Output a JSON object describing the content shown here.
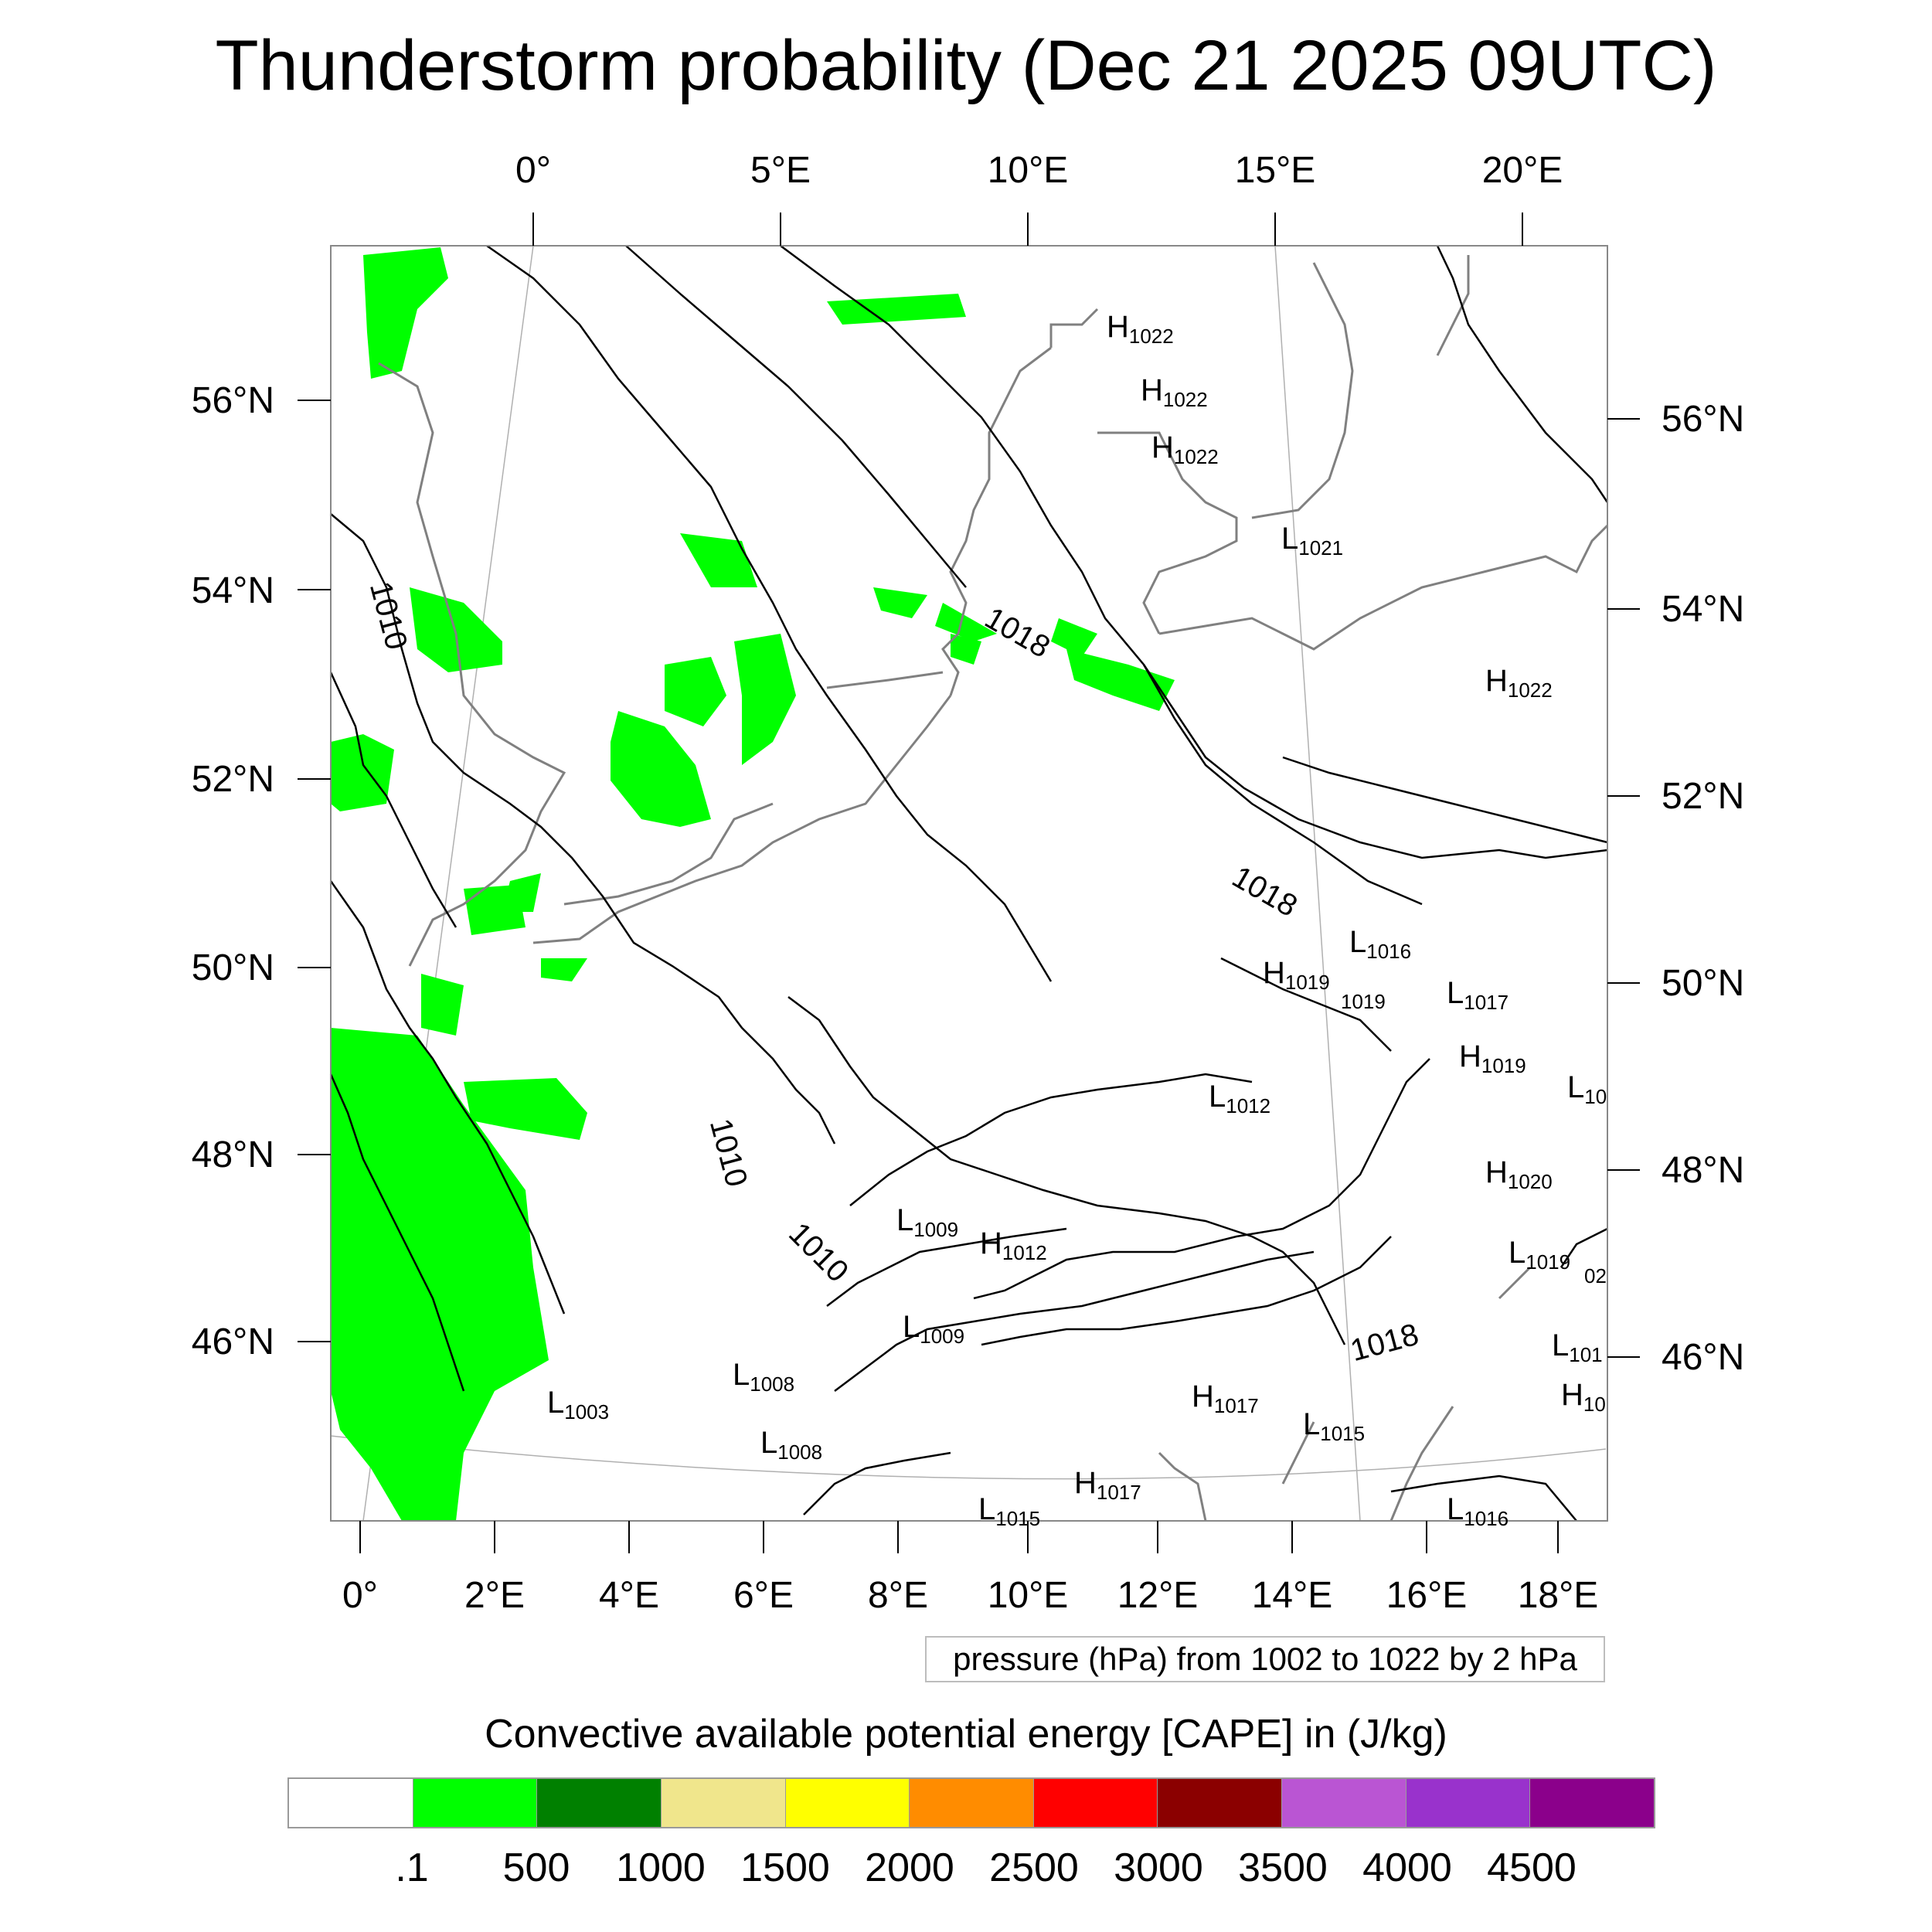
{
  "title": "Thunderstorm probability (Dec 21 2025 09UTC)",
  "colors": {
    "cape_fill": "#00ff00",
    "isobar": "#000000",
    "coastline": "#808080",
    "frame": "#888888",
    "graticule": "#b0b0b0"
  },
  "map": {
    "top_longitude_labels": [
      "0°",
      "5°E",
      "10°E",
      "15°E",
      "20°E"
    ],
    "bottom_longitude_labels": [
      "0°",
      "2°E",
      "4°E",
      "6°E",
      "8°E",
      "10°E",
      "12°E",
      "14°E",
      "16°E",
      "18°E"
    ],
    "left_latitude_labels": [
      "56°N",
      "54°N",
      "52°N",
      "50°N",
      "48°N",
      "46°N"
    ],
    "right_latitude_labels": [
      "56°N",
      "54°N",
      "52°N",
      "50°N",
      "48°N",
      "46°N"
    ],
    "isobar_labels": [
      "1010",
      "1018",
      "1018",
      "1010",
      "1010",
      "1018"
    ],
    "pressure_centers": [
      {
        "type": "H",
        "value": "1022"
      },
      {
        "type": "H",
        "value": "1022"
      },
      {
        "type": "H",
        "value": "1022"
      },
      {
        "type": "L",
        "value": "1021"
      },
      {
        "type": "H",
        "value": "1022"
      },
      {
        "type": "L",
        "value": "1016"
      },
      {
        "type": "H",
        "value": "1019"
      },
      {
        "type": "L",
        "value": "1017"
      },
      {
        "type": "",
        "value": "1019"
      },
      {
        "type": "H",
        "value": "1019"
      },
      {
        "type": "L",
        "value": "10"
      },
      {
        "type": "L",
        "value": "1012"
      },
      {
        "type": "H",
        "value": "1020"
      },
      {
        "type": "L",
        "value": "1009"
      },
      {
        "type": "H",
        "value": "1012"
      },
      {
        "type": "L",
        "value": "1019"
      },
      {
        "type": "",
        "value": "02"
      },
      {
        "type": "L",
        "value": "1009"
      },
      {
        "type": "L",
        "value": "101"
      },
      {
        "type": "L",
        "value": "1008"
      },
      {
        "type": "L",
        "value": "1003"
      },
      {
        "type": "H",
        "value": "10"
      },
      {
        "type": "H",
        "value": "1017"
      },
      {
        "type": "L",
        "value": "1015"
      },
      {
        "type": "L",
        "value": "1008"
      },
      {
        "type": "H",
        "value": "1017"
      },
      {
        "type": "L",
        "value": "1015"
      },
      {
        "type": "L",
        "value": "1016"
      }
    ]
  },
  "info_box": "pressure (hPa) from 1002 to 1022 by 2 hPa",
  "colorbar": {
    "title": "Convective available potential energy [CAPE] in (J/kg)",
    "colors": [
      "#ffffff",
      "#00ff00",
      "#008000",
      "#f0e68c",
      "#ffff00",
      "#ff8c00",
      "#ff0000",
      "#8b0000",
      "#ba55d3",
      "#9932cc",
      "#8b008b"
    ],
    "tick_labels": [
      ".1",
      "500",
      "1000",
      "1500",
      "2000",
      "2500",
      "3000",
      "3500",
      "4000",
      "4500"
    ]
  }
}
